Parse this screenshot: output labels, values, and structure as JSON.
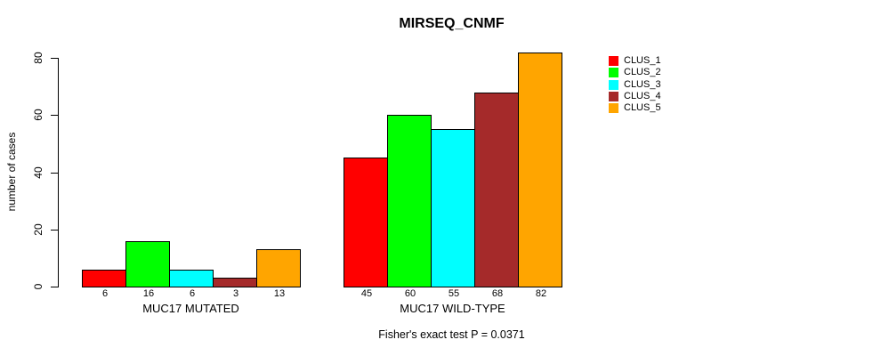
{
  "title": "MIRSEQ_CNMF",
  "caption": "Fisher's exact test P = 0.0371",
  "chart_data": {
    "type": "bar",
    "title": "MIRSEQ_CNMF",
    "xlabel": "",
    "ylabel": "number of cases",
    "ylim": [
      0,
      80
    ],
    "yticks": [
      0,
      20,
      40,
      60,
      80
    ],
    "grid": false,
    "bar_borders": true,
    "legend_position": "top-right",
    "categories": [
      "MUC17 MUTATED",
      "MUC17 WILD-TYPE"
    ],
    "series": [
      {
        "name": "CLUS_1",
        "color": "#FF0000",
        "values": [
          6,
          45
        ]
      },
      {
        "name": "CLUS_2",
        "color": "#00FF00",
        "values": [
          16,
          60
        ]
      },
      {
        "name": "CLUS_3",
        "color": "#00FFFF",
        "values": [
          6,
          55
        ]
      },
      {
        "name": "CLUS_4",
        "color": "#A52A2A",
        "values": [
          3,
          68
        ]
      },
      {
        "name": "CLUS_5",
        "color": "#FFA500",
        "values": [
          13,
          82
        ]
      }
    ],
    "bar_value_labels": {
      "MUC17 MUTATED": [
        6,
        16,
        6,
        3,
        13
      ],
      "MUC17 WILD-TYPE": [
        45,
        60,
        55,
        68,
        82
      ]
    },
    "annotation": "Fisher's exact test P = 0.0371"
  }
}
